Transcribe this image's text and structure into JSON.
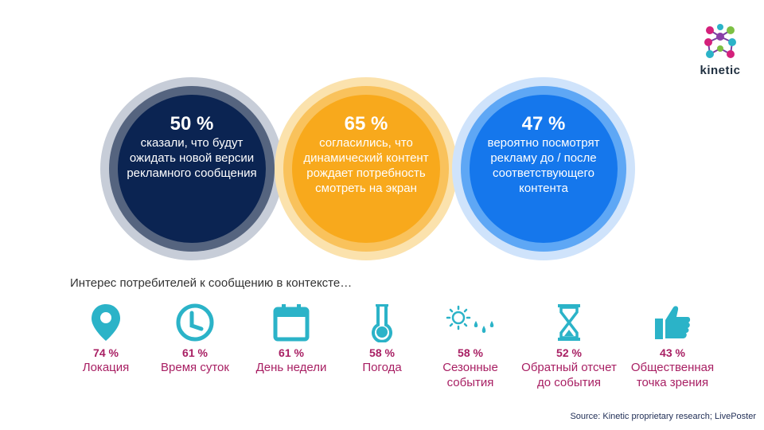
{
  "brand": {
    "name": "kinetic"
  },
  "circles": [
    {
      "percent": "50 %",
      "text": "сказали, что будут ожидать новой версии рекламного сообщения"
    },
    {
      "percent": "65 %",
      "text": "согласились, что динамический контент рождает потребность смотреть на экран"
    },
    {
      "percent": "47 %",
      "text": "вероятно посмотрят рекламу до / после соответствующего контента"
    }
  ],
  "interest_title": "Интерес потребителей  к сообщению  в контексте…",
  "items": [
    {
      "percent": "74 %",
      "label": "Локация",
      "icon": "location-pin-icon"
    },
    {
      "percent": "61 %",
      "label": "Время суток",
      "icon": "clock-icon"
    },
    {
      "percent": "61 %",
      "label": "День недели",
      "icon": "calendar-icon"
    },
    {
      "percent": "58 %",
      "label": "Погода",
      "icon": "thermometer-icon"
    },
    {
      "percent": "58 %",
      "label": "Сезонные события",
      "icon": "sun-rain-icon"
    },
    {
      "percent": "52 %",
      "label": "Обратный отсчет до события",
      "icon": "hourglass-icon"
    },
    {
      "percent": "43 %",
      "label": "Общественная точка зрения",
      "icon": "thumbs-up-icon"
    }
  ],
  "source": "Source: Kinetic proprietary research; LivePoster",
  "colors": {
    "navy": "#0b2452",
    "orange": "#f8a91c",
    "blue": "#1577ec",
    "magenta": "#a81f63",
    "teal": "#2bb3c8"
  }
}
